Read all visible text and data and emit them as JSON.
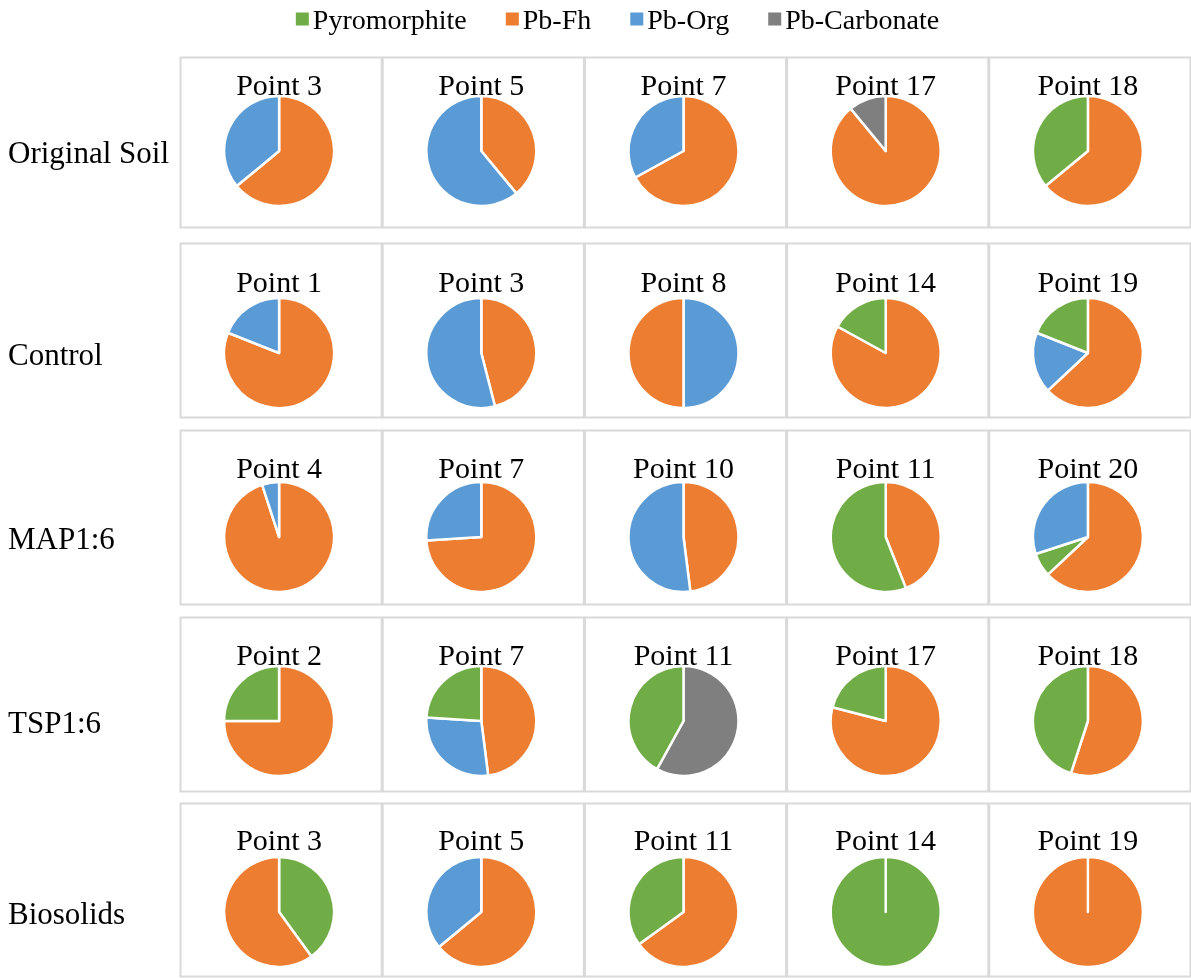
{
  "chart_data": [
    {
      "type": "pie",
      "title": "Point 3",
      "ylabel": "Original Soil",
      "legend": "top",
      "categories": [
        "Pyromorphite",
        "Pb-Fh",
        "Pb-Org",
        "Pb-Carbonate"
      ],
      "values": [
        0,
        64,
        36,
        0
      ],
      "colors": [
        "#70ad47",
        "#ed7d31",
        "#5b9bd5",
        "#7f7f7f"
      ]
    },
    {
      "type": "pie",
      "title": "Point 5",
      "categories": [
        null,
        null
      ],
      "values": [
        39,
        61
      ],
      "colors": [
        "#ed7d31",
        "#5b9bd5"
      ]
    },
    {
      "type": "pie",
      "title": "Point 7",
      "categories": [
        null,
        null
      ],
      "values": [
        67,
        33
      ],
      "colors": [
        "#ed7d31",
        "#5b9bd5"
      ]
    },
    {
      "type": "pie",
      "title": "Point 17",
      "categories": [
        null,
        null
      ],
      "values": [
        89,
        11
      ],
      "colors": [
        "#ed7d31",
        "#7f7f7f"
      ]
    },
    {
      "type": "pie",
      "title": "Point 18",
      "categories": [
        null,
        null
      ],
      "values": [
        64,
        36
      ],
      "colors": [
        "#ed7d31",
        "#70ad47"
      ]
    },
    {
      "type": "pie",
      "title": "Point 1",
      "ylabel": "Control",
      "categories": [
        null,
        null
      ],
      "values": [
        81,
        19
      ],
      "colors": [
        "#ed7d31",
        "#5b9bd5"
      ]
    },
    {
      "type": "pie",
      "title": "Point 3",
      "categories": [
        null,
        null
      ],
      "values": [
        46,
        54
      ],
      "colors": [
        "#ed7d31",
        "#5b9bd5"
      ]
    },
    {
      "type": "pie",
      "title": "Point 8",
      "categories": [
        null,
        null
      ],
      "values": [
        50,
        50
      ],
      "colors": [
        "#5b9bd5",
        "#ed7d31"
      ]
    },
    {
      "type": "pie",
      "title": "Point 14",
      "categories": [
        null,
        null
      ],
      "values": [
        83,
        17
      ],
      "colors": [
        "#ed7d31",
        "#70ad47"
      ]
    },
    {
      "type": "pie",
      "title": "Point 19",
      "categories": [
        null,
        null,
        null
      ],
      "values": [
        63,
        18,
        19
      ],
      "colors": [
        "#ed7d31",
        "#5b9bd5",
        "#70ad47"
      ]
    },
    {
      "type": "pie",
      "title": "Point 4",
      "ylabel": "MAP1:6",
      "categories": [
        null,
        null
      ],
      "values": [
        95,
        5
      ],
      "colors": [
        "#ed7d31",
        "#5b9bd5"
      ]
    },
    {
      "type": "pie",
      "title": "Point 7",
      "categories": [
        null,
        null
      ],
      "values": [
        74,
        26
      ],
      "colors": [
        "#ed7d31",
        "#5b9bd5"
      ]
    },
    {
      "type": "pie",
      "title": "Point 10",
      "categories": [
        null,
        null
      ],
      "values": [
        48,
        52
      ],
      "colors": [
        "#ed7d31",
        "#5b9bd5"
      ]
    },
    {
      "type": "pie",
      "title": "Point 11",
      "categories": [
        null,
        null
      ],
      "values": [
        44,
        56
      ],
      "colors": [
        "#ed7d31",
        "#70ad47"
      ]
    },
    {
      "type": "pie",
      "title": "Point 20",
      "categories": [
        null,
        null,
        null
      ],
      "values": [
        63,
        7,
        30
      ],
      "colors": [
        "#ed7d31",
        "#70ad47",
        "#5b9bd5"
      ]
    },
    {
      "type": "pie",
      "title": "Point 2",
      "ylabel": "TSP1:6",
      "categories": [
        null,
        null
      ],
      "values": [
        75,
        25
      ],
      "colors": [
        "#ed7d31",
        "#70ad47"
      ]
    },
    {
      "type": "pie",
      "title": "Point 7",
      "categories": [
        null,
        null,
        null
      ],
      "values": [
        48,
        28,
        24
      ],
      "colors": [
        "#ed7d31",
        "#5b9bd5",
        "#70ad47"
      ]
    },
    {
      "type": "pie",
      "title": "Point 11",
      "categories": [
        null,
        null
      ],
      "values": [
        58,
        42
      ],
      "colors": [
        "#7f7f7f",
        "#70ad47"
      ]
    },
    {
      "type": "pie",
      "title": "Point 17",
      "categories": [
        null,
        null
      ],
      "values": [
        79,
        21
      ],
      "colors": [
        "#ed7d31",
        "#70ad47"
      ]
    },
    {
      "type": "pie",
      "title": "Point 18",
      "categories": [
        null,
        null
      ],
      "values": [
        55,
        45
      ],
      "colors": [
        "#ed7d31",
        "#70ad47"
      ]
    },
    {
      "type": "pie",
      "title": "Point 3",
      "ylabel": "Biosolids",
      "categories": [
        null,
        null
      ],
      "values": [
        40,
        60
      ],
      "colors": [
        "#70ad47",
        "#ed7d31"
      ]
    },
    {
      "type": "pie",
      "title": "Point 5",
      "categories": [
        null,
        null
      ],
      "values": [
        64,
        36
      ],
      "colors": [
        "#ed7d31",
        "#5b9bd5"
      ]
    },
    {
      "type": "pie",
      "title": "Point 11",
      "categories": [
        null,
        null
      ],
      "values": [
        65,
        35
      ],
      "colors": [
        "#ed7d31",
        "#70ad47"
      ]
    },
    {
      "type": "pie",
      "title": "Point 14",
      "categories": [
        null
      ],
      "values": [
        100
      ],
      "colors": [
        "#70ad47"
      ]
    },
    {
      "type": "pie",
      "title": "Point 19",
      "categories": [
        null
      ],
      "values": [
        100
      ],
      "colors": [
        "#ed7d31"
      ]
    }
  ]
}
